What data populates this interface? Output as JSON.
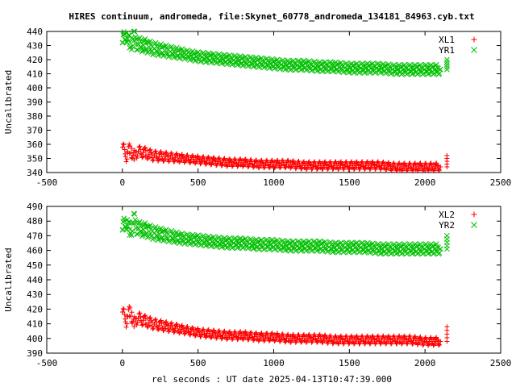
{
  "title": "HIRES continuum, andromeda, file:Skynet_60778_andromeda_134181_84963.cyb.txt",
  "xlabel": "rel seconds : UT date 2025-04-13T10:47:39.000",
  "colors": {
    "red": "#ff0000",
    "green": "#00c000"
  },
  "chart_data": [
    {
      "type": "scatter",
      "ylabel": "Uncalibrated",
      "xlim": [
        -500,
        2500
      ],
      "ylim": [
        340,
        440
      ],
      "xticks": [
        "-500",
        "0",
        "500",
        "1000",
        "1500",
        "2000",
        "2500"
      ],
      "yticks": [
        "340",
        "350",
        "360",
        "370",
        "380",
        "390",
        "400",
        "410",
        "420",
        "430",
        "440"
      ],
      "legend_position": "top-right",
      "series": [
        {
          "name": "XL1",
          "marker": "plus",
          "color": "#ff0000",
          "points": [
            [
              0,
              358
            ],
            [
              25,
              352
            ],
            [
              50,
              357
            ],
            [
              75,
              351
            ],
            [
              100,
              355
            ],
            [
              150,
              354
            ],
            [
              200,
              352
            ],
            [
              300,
              351
            ],
            [
              400,
              350
            ],
            [
              500,
              349
            ],
            [
              600,
              348
            ],
            [
              700,
              347
            ],
            [
              800,
              347
            ],
            [
              900,
              346
            ],
            [
              1000,
              346
            ],
            [
              1100,
              346
            ],
            [
              1200,
              345
            ],
            [
              1300,
              345
            ],
            [
              1400,
              345
            ],
            [
              1500,
              345
            ],
            [
              1600,
              345
            ],
            [
              1700,
              345
            ],
            [
              1800,
              344
            ],
            [
              1900,
              344
            ],
            [
              2000,
              344
            ],
            [
              2100,
              344
            ],
            [
              2145,
              352
            ]
          ]
        },
        {
          "name": "YR1",
          "marker": "x",
          "color": "#00c000",
          "points": [
            [
              0,
              432
            ],
            [
              25,
              438
            ],
            [
              50,
              430
            ],
            [
              75,
              436
            ],
            [
              100,
              431
            ],
            [
              150,
              430
            ],
            [
              200,
              428
            ],
            [
              300,
              426
            ],
            [
              400,
              424
            ],
            [
              500,
              422
            ],
            [
              600,
              421
            ],
            [
              700,
              420
            ],
            [
              800,
              419
            ],
            [
              900,
              418
            ],
            [
              1000,
              417
            ],
            [
              1100,
              416
            ],
            [
              1200,
              416
            ],
            [
              1300,
              415
            ],
            [
              1400,
              415
            ],
            [
              1500,
              414
            ],
            [
              1600,
              414
            ],
            [
              1700,
              414
            ],
            [
              1800,
              413
            ],
            [
              1900,
              413
            ],
            [
              2000,
              413
            ],
            [
              2100,
              413
            ],
            [
              2145,
              420
            ]
          ]
        }
      ]
    },
    {
      "type": "scatter",
      "ylabel": "Uncalibrated",
      "xlim": [
        -500,
        2500
      ],
      "ylim": [
        390,
        490
      ],
      "xticks": [
        "-500",
        "0",
        "500",
        "1000",
        "1500",
        "2000",
        "2500"
      ],
      "yticks": [
        "390",
        "400",
        "410",
        "420",
        "430",
        "440",
        "450",
        "460",
        "470",
        "480",
        "490"
      ],
      "legend_position": "top-right",
      "series": [
        {
          "name": "XL2",
          "marker": "plus",
          "color": "#ff0000",
          "points": [
            [
              0,
              418
            ],
            [
              25,
              412
            ],
            [
              50,
              419
            ],
            [
              75,
              410
            ],
            [
              100,
              414
            ],
            [
              150,
              412
            ],
            [
              200,
              410
            ],
            [
              300,
              408
            ],
            [
              400,
              406
            ],
            [
              500,
              404
            ],
            [
              600,
              403
            ],
            [
              700,
              402
            ],
            [
              800,
              402
            ],
            [
              900,
              401
            ],
            [
              1000,
              401
            ],
            [
              1100,
              400
            ],
            [
              1200,
              400
            ],
            [
              1300,
              400
            ],
            [
              1400,
              399
            ],
            [
              1500,
              399
            ],
            [
              1600,
              399
            ],
            [
              1700,
              399
            ],
            [
              1800,
              399
            ],
            [
              1900,
              399
            ],
            [
              2000,
              398
            ],
            [
              2100,
              398
            ],
            [
              2145,
              408
            ]
          ]
        },
        {
          "name": "YR2",
          "marker": "x",
          "color": "#00c000",
          "points": [
            [
              0,
              474
            ],
            [
              25,
              480
            ],
            [
              50,
              472
            ],
            [
              75,
              481
            ],
            [
              100,
              475
            ],
            [
              150,
              474
            ],
            [
              200,
              472
            ],
            [
              300,
              470
            ],
            [
              400,
              468
            ],
            [
              500,
              467
            ],
            [
              600,
              466
            ],
            [
              700,
              465
            ],
            [
              800,
              465
            ],
            [
              900,
              464
            ],
            [
              1000,
              464
            ],
            [
              1100,
              463
            ],
            [
              1200,
              463
            ],
            [
              1300,
              463
            ],
            [
              1400,
              462
            ],
            [
              1500,
              462
            ],
            [
              1600,
              462
            ],
            [
              1700,
              461
            ],
            [
              1800,
              461
            ],
            [
              1900,
              461
            ],
            [
              2000,
              461
            ],
            [
              2100,
              461
            ],
            [
              2145,
              470
            ]
          ]
        }
      ]
    }
  ]
}
